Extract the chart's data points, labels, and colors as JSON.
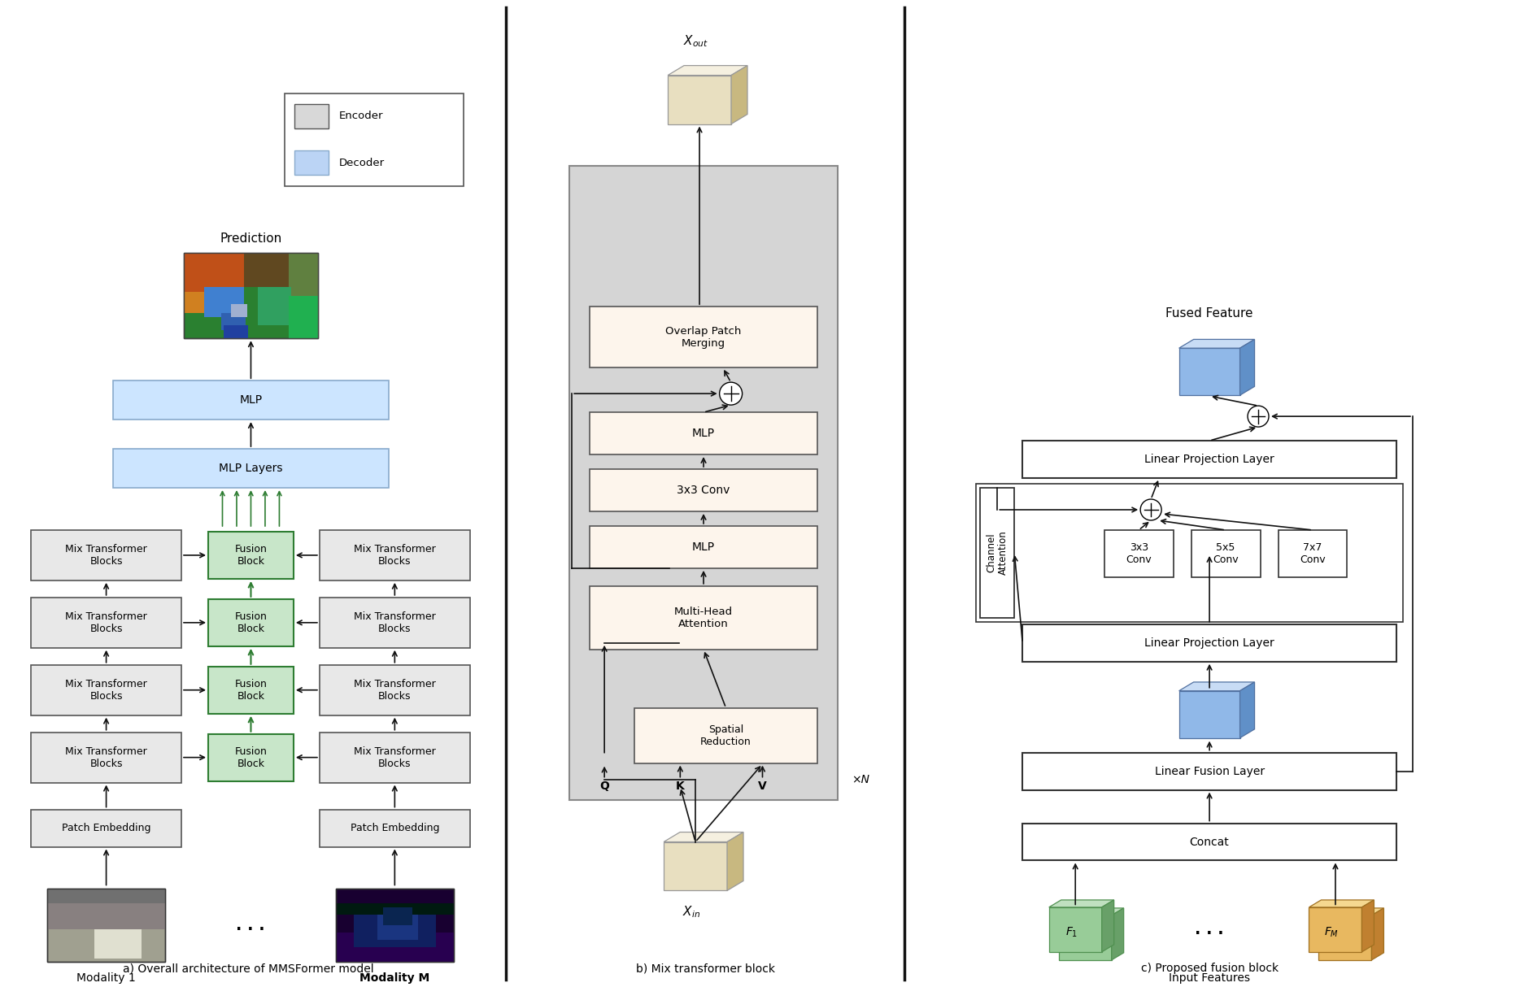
{
  "bg_color": "#ffffff",
  "panel_a_caption": "a) Overall architecture of MMSFormer model",
  "panel_b_caption": "b) Mix transformer block",
  "panel_c_caption": "c) Proposed fusion block",
  "encoder_box_color": "#e8e8e8",
  "encoder_box_edge": "#555555",
  "decoder_box_color": "#cce5ff",
  "decoder_box_edge": "#88aacc",
  "fusion_box_color": "#c8e6c9",
  "fusion_box_edge": "#2e7d32",
  "arrow_color": "#111111",
  "green_arrow_color": "#2e7d32",
  "divider_color": "#111111",
  "legend_encoder_color": "#d8d8d8",
  "legend_decoder_color": "#bbd4f5",
  "panel_b_bg": "#d0d0d0",
  "panel_b_inner": "#fdf5ec",
  "cube_tan_face": "#e8dfc0",
  "cube_tan_top": "#f5f0e0",
  "cube_tan_side": "#c8b880",
  "cube_blue_face": "#90b8e8",
  "cube_blue_top": "#c8dcf5",
  "cube_blue_side": "#6090c8",
  "cube_green_face": "#98cc98",
  "cube_green_top": "#c0e0c0",
  "cube_green_side": "#68a068",
  "cube_orange_face": "#e8b860",
  "cube_orange_top": "#f5d890",
  "cube_orange_side": "#c08030",
  "font_size_label": 10,
  "font_size_caption": 10,
  "font_size_small": 8
}
